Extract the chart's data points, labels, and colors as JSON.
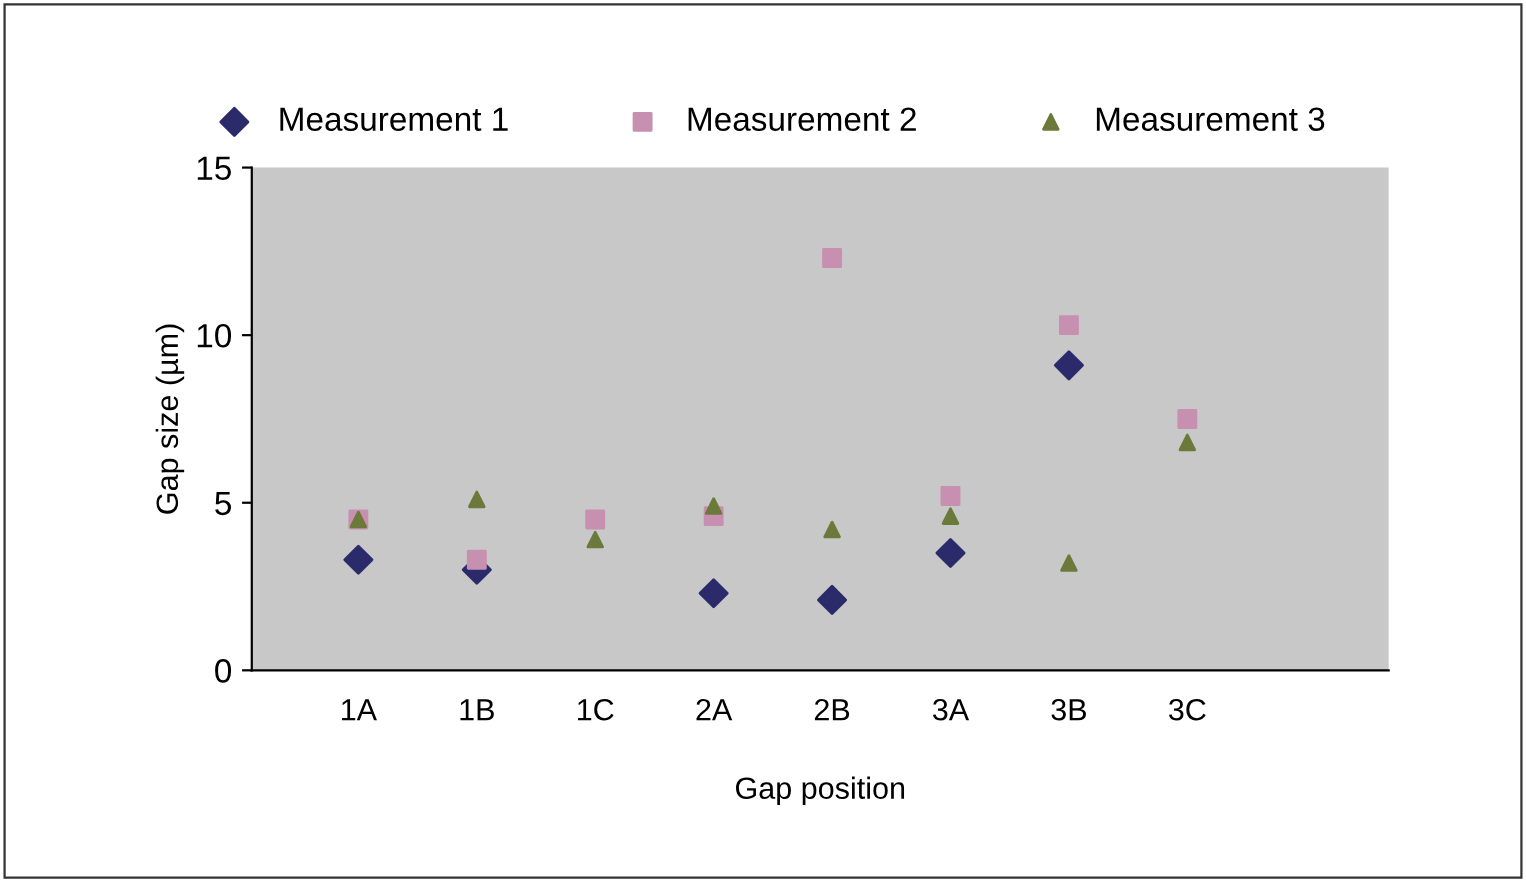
{
  "chart_data": {
    "type": "scatter",
    "xlabel": "Gap position",
    "ylabel": "Gap size (µm)",
    "categories": [
      "1A",
      "1B",
      "1C",
      "2A",
      "2B",
      "3A",
      "3B",
      "3C"
    ],
    "series": [
      {
        "name": "Measurement 1",
        "color": "#2b2b6b",
        "marker": "diamond",
        "values": [
          3.3,
          3.0,
          null,
          2.3,
          2.1,
          3.5,
          9.1,
          null
        ]
      },
      {
        "name": "Measurement 2",
        "color": "#c890b0",
        "marker": "square",
        "values": [
          4.5,
          3.3,
          4.5,
          4.6,
          12.3,
          5.2,
          10.3,
          7.5
        ]
      },
      {
        "name": "Measurement 3",
        "color": "#6b7a3a",
        "marker": "triangle",
        "values": [
          4.5,
          5.1,
          3.9,
          4.9,
          4.2,
          4.6,
          3.2,
          6.8
        ]
      }
    ],
    "ylim": [
      0,
      15
    ],
    "yticks": [
      0,
      5,
      10,
      15
    ],
    "grid": false,
    "legend": "top"
  }
}
